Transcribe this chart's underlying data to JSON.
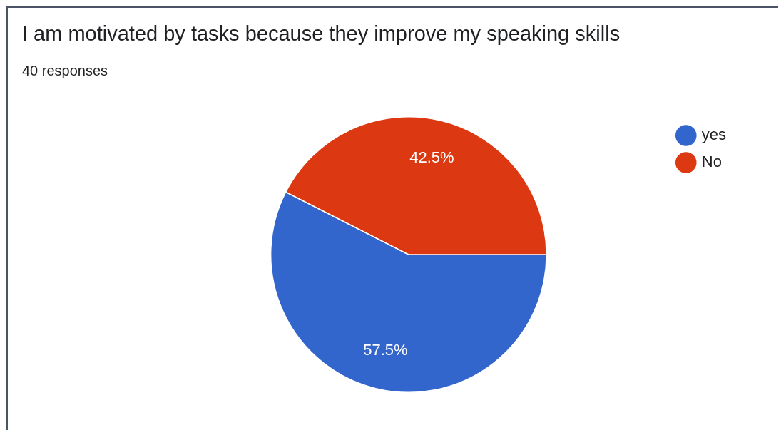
{
  "chart_data": {
    "type": "pie",
    "title": "I am motivated by tasks because they improve my speaking skills",
    "subtitle": "40 responses",
    "categories": [
      "yes",
      "No"
    ],
    "values": [
      57.5,
      42.5
    ],
    "colors": [
      "#3366cc",
      "#dc3912"
    ],
    "value_labels": [
      "57.5%",
      "42.5%"
    ],
    "legend": "right"
  }
}
